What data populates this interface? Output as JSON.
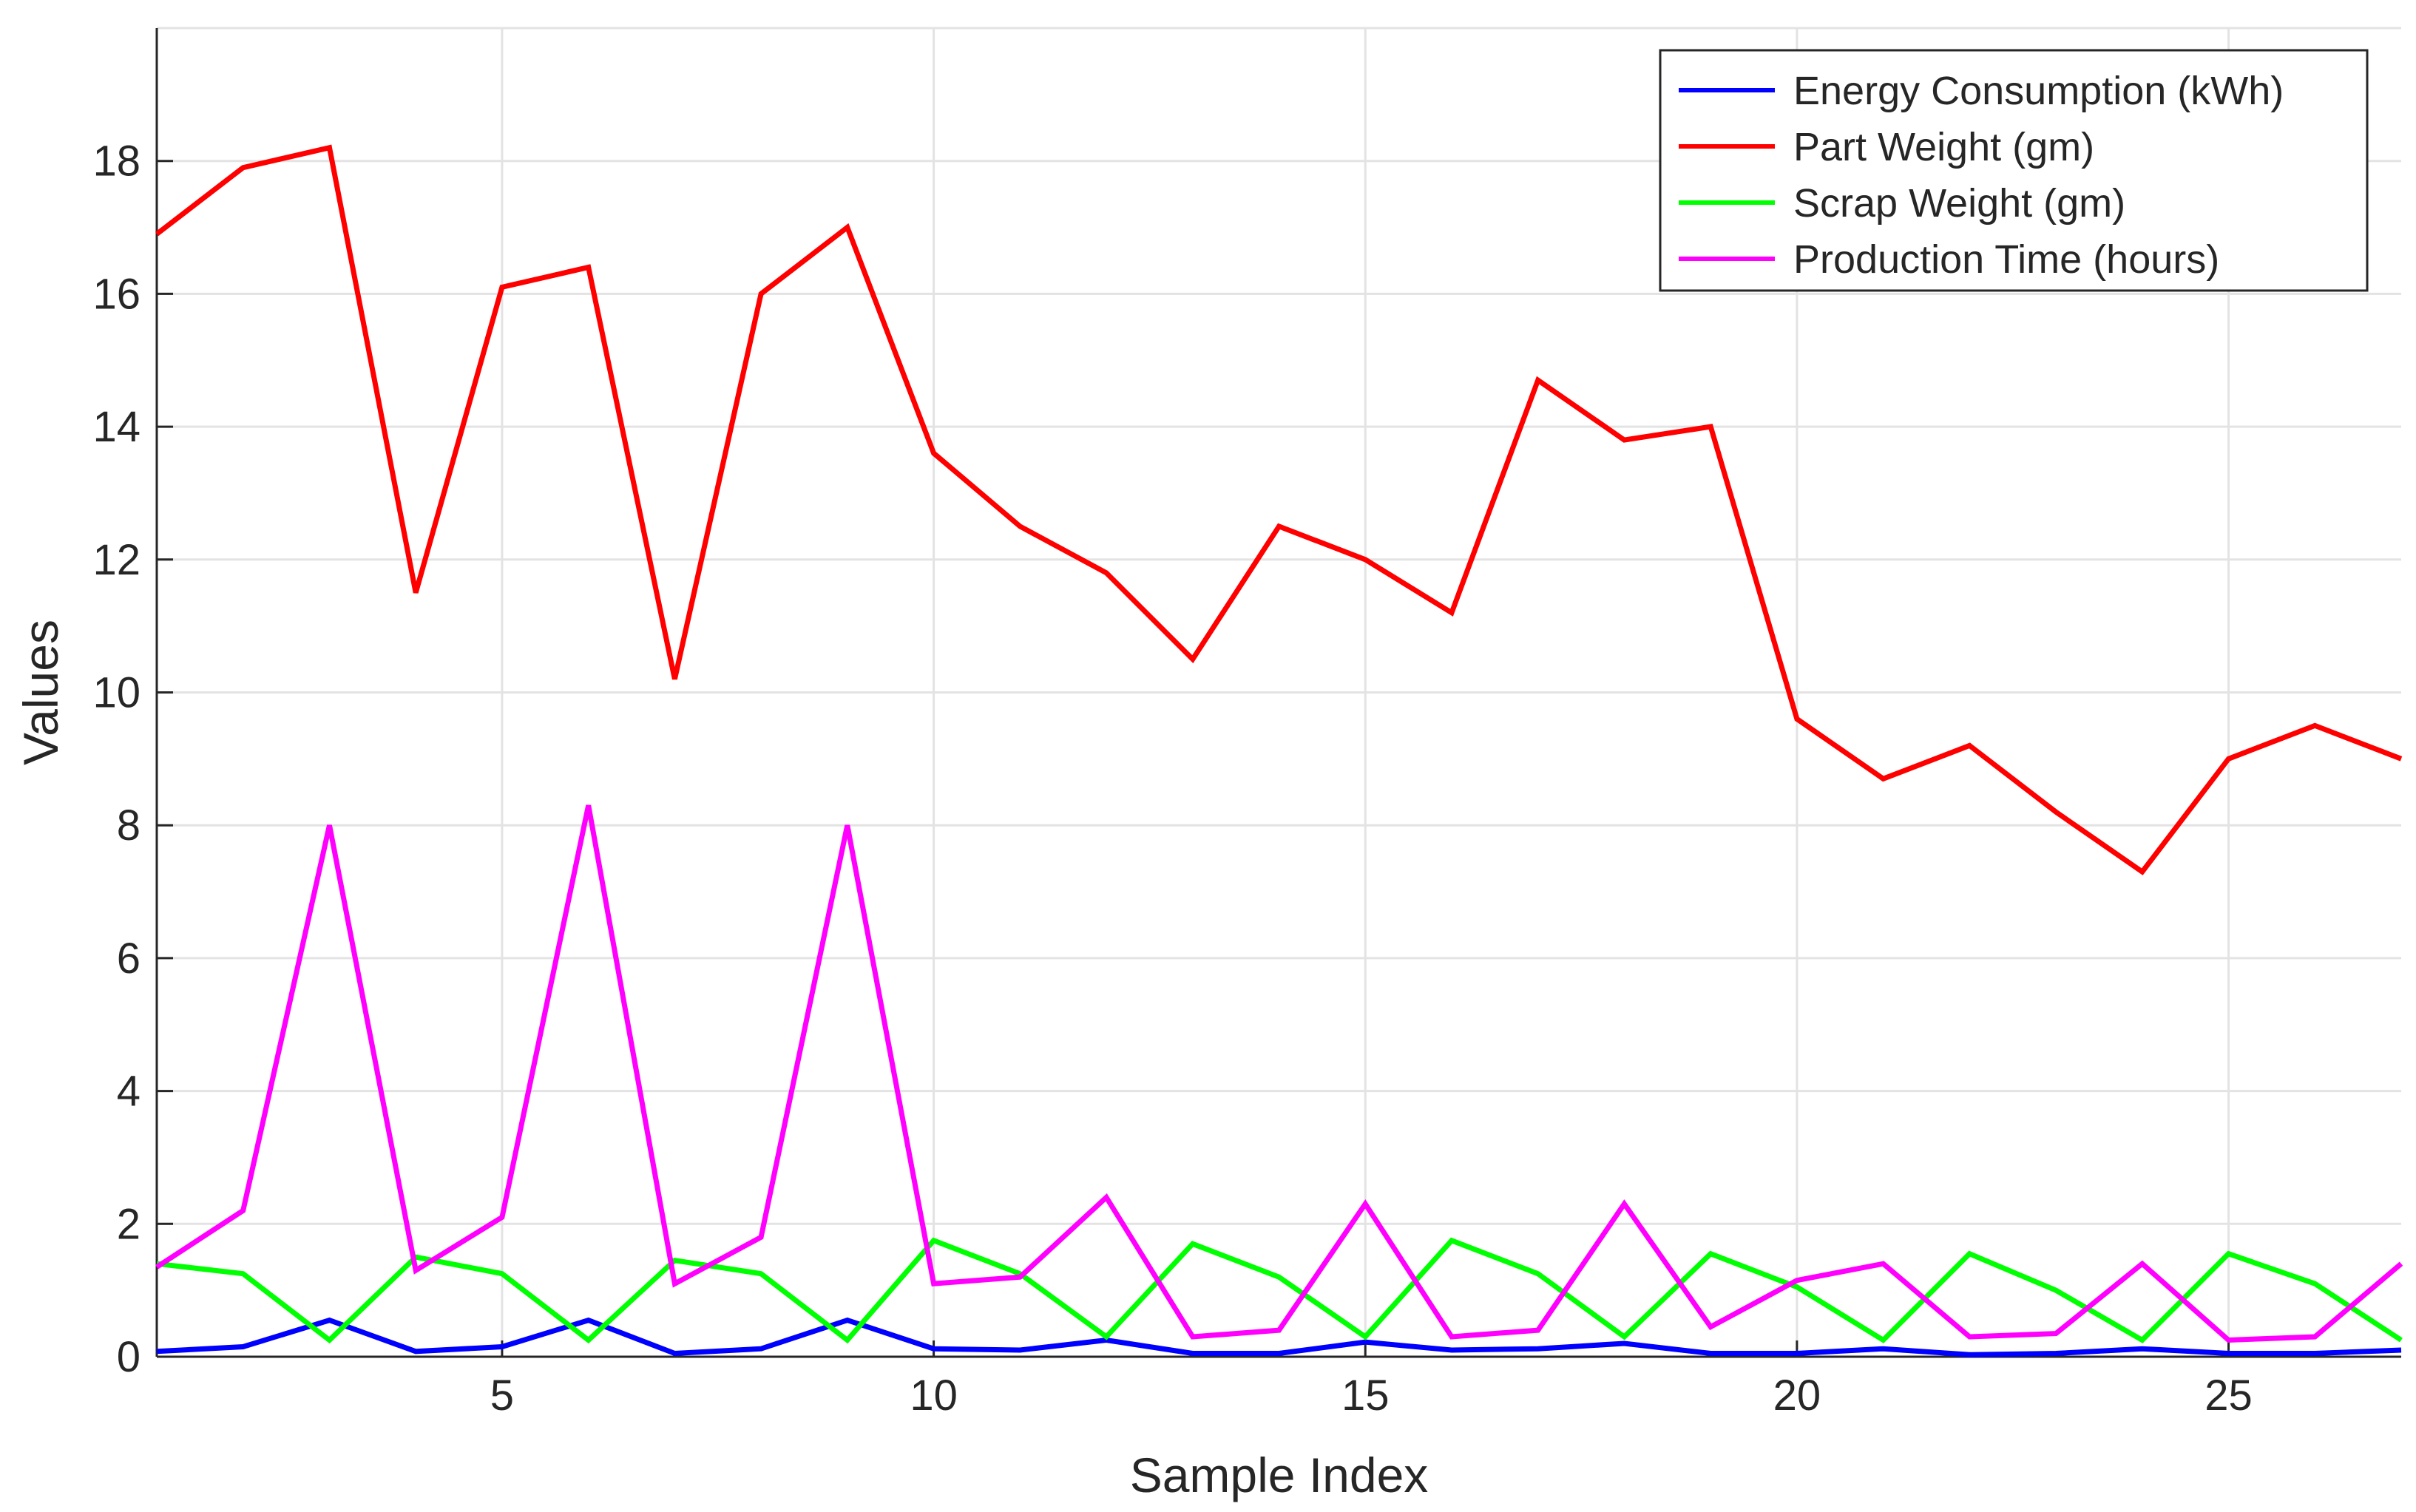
{
  "chart_data": {
    "type": "line",
    "title": "",
    "xlabel": "Sample Index",
    "ylabel": "Values",
    "xlim": [
      1,
      27
    ],
    "ylim": [
      0,
      20
    ],
    "xticks": [
      5,
      10,
      15,
      20,
      25
    ],
    "yticks": [
      0,
      2,
      4,
      6,
      8,
      10,
      12,
      14,
      16,
      18
    ],
    "grid": true,
    "legend_position": "top-right",
    "x": [
      1,
      2,
      3,
      4,
      5,
      6,
      7,
      8,
      9,
      10,
      11,
      12,
      13,
      14,
      15,
      16,
      17,
      18,
      19,
      20,
      21,
      22,
      23,
      24,
      25,
      26,
      27
    ],
    "series": [
      {
        "name": "Energy Consumption (kWh)",
        "color": "#0000ff",
        "values": [
          0.08,
          0.15,
          0.55,
          0.08,
          0.15,
          0.55,
          0.05,
          0.12,
          0.55,
          0.12,
          0.1,
          0.25,
          0.05,
          0.05,
          0.22,
          0.1,
          0.12,
          0.2,
          0.05,
          0.05,
          0.12,
          0.03,
          0.05,
          0.12,
          0.05,
          0.05,
          0.1
        ]
      },
      {
        "name": "Part Weight (gm)",
        "color": "#ff0000",
        "values": [
          16.9,
          17.9,
          18.2,
          11.5,
          16.1,
          16.4,
          10.2,
          16.0,
          17.0,
          13.6,
          12.5,
          11.8,
          10.5,
          12.5,
          12.0,
          11.2,
          14.7,
          13.8,
          14.0,
          9.6,
          8.7,
          9.2,
          8.2,
          7.3,
          9.0,
          9.5,
          9.0
        ]
      },
      {
        "name": "Scrap Weight (gm)",
        "color": "#00ff00",
        "values": [
          1.4,
          1.25,
          0.25,
          1.5,
          1.25,
          0.25,
          1.45,
          1.25,
          0.25,
          1.75,
          1.25,
          0.3,
          1.7,
          1.2,
          0.3,
          1.75,
          1.25,
          0.3,
          1.55,
          1.05,
          0.25,
          1.55,
          1.0,
          0.25,
          1.55,
          1.1,
          0.25
        ]
      },
      {
        "name": "Production Time (hours)",
        "color": "#ff00ff",
        "values": [
          1.35,
          2.2,
          8.0,
          1.3,
          2.1,
          8.3,
          1.1,
          1.8,
          8.0,
          1.1,
          1.2,
          2.4,
          0.3,
          0.4,
          2.3,
          0.3,
          0.4,
          2.3,
          0.45,
          1.15,
          1.4,
          0.3,
          0.35,
          1.4,
          0.25,
          0.3,
          1.4
        ]
      }
    ]
  }
}
